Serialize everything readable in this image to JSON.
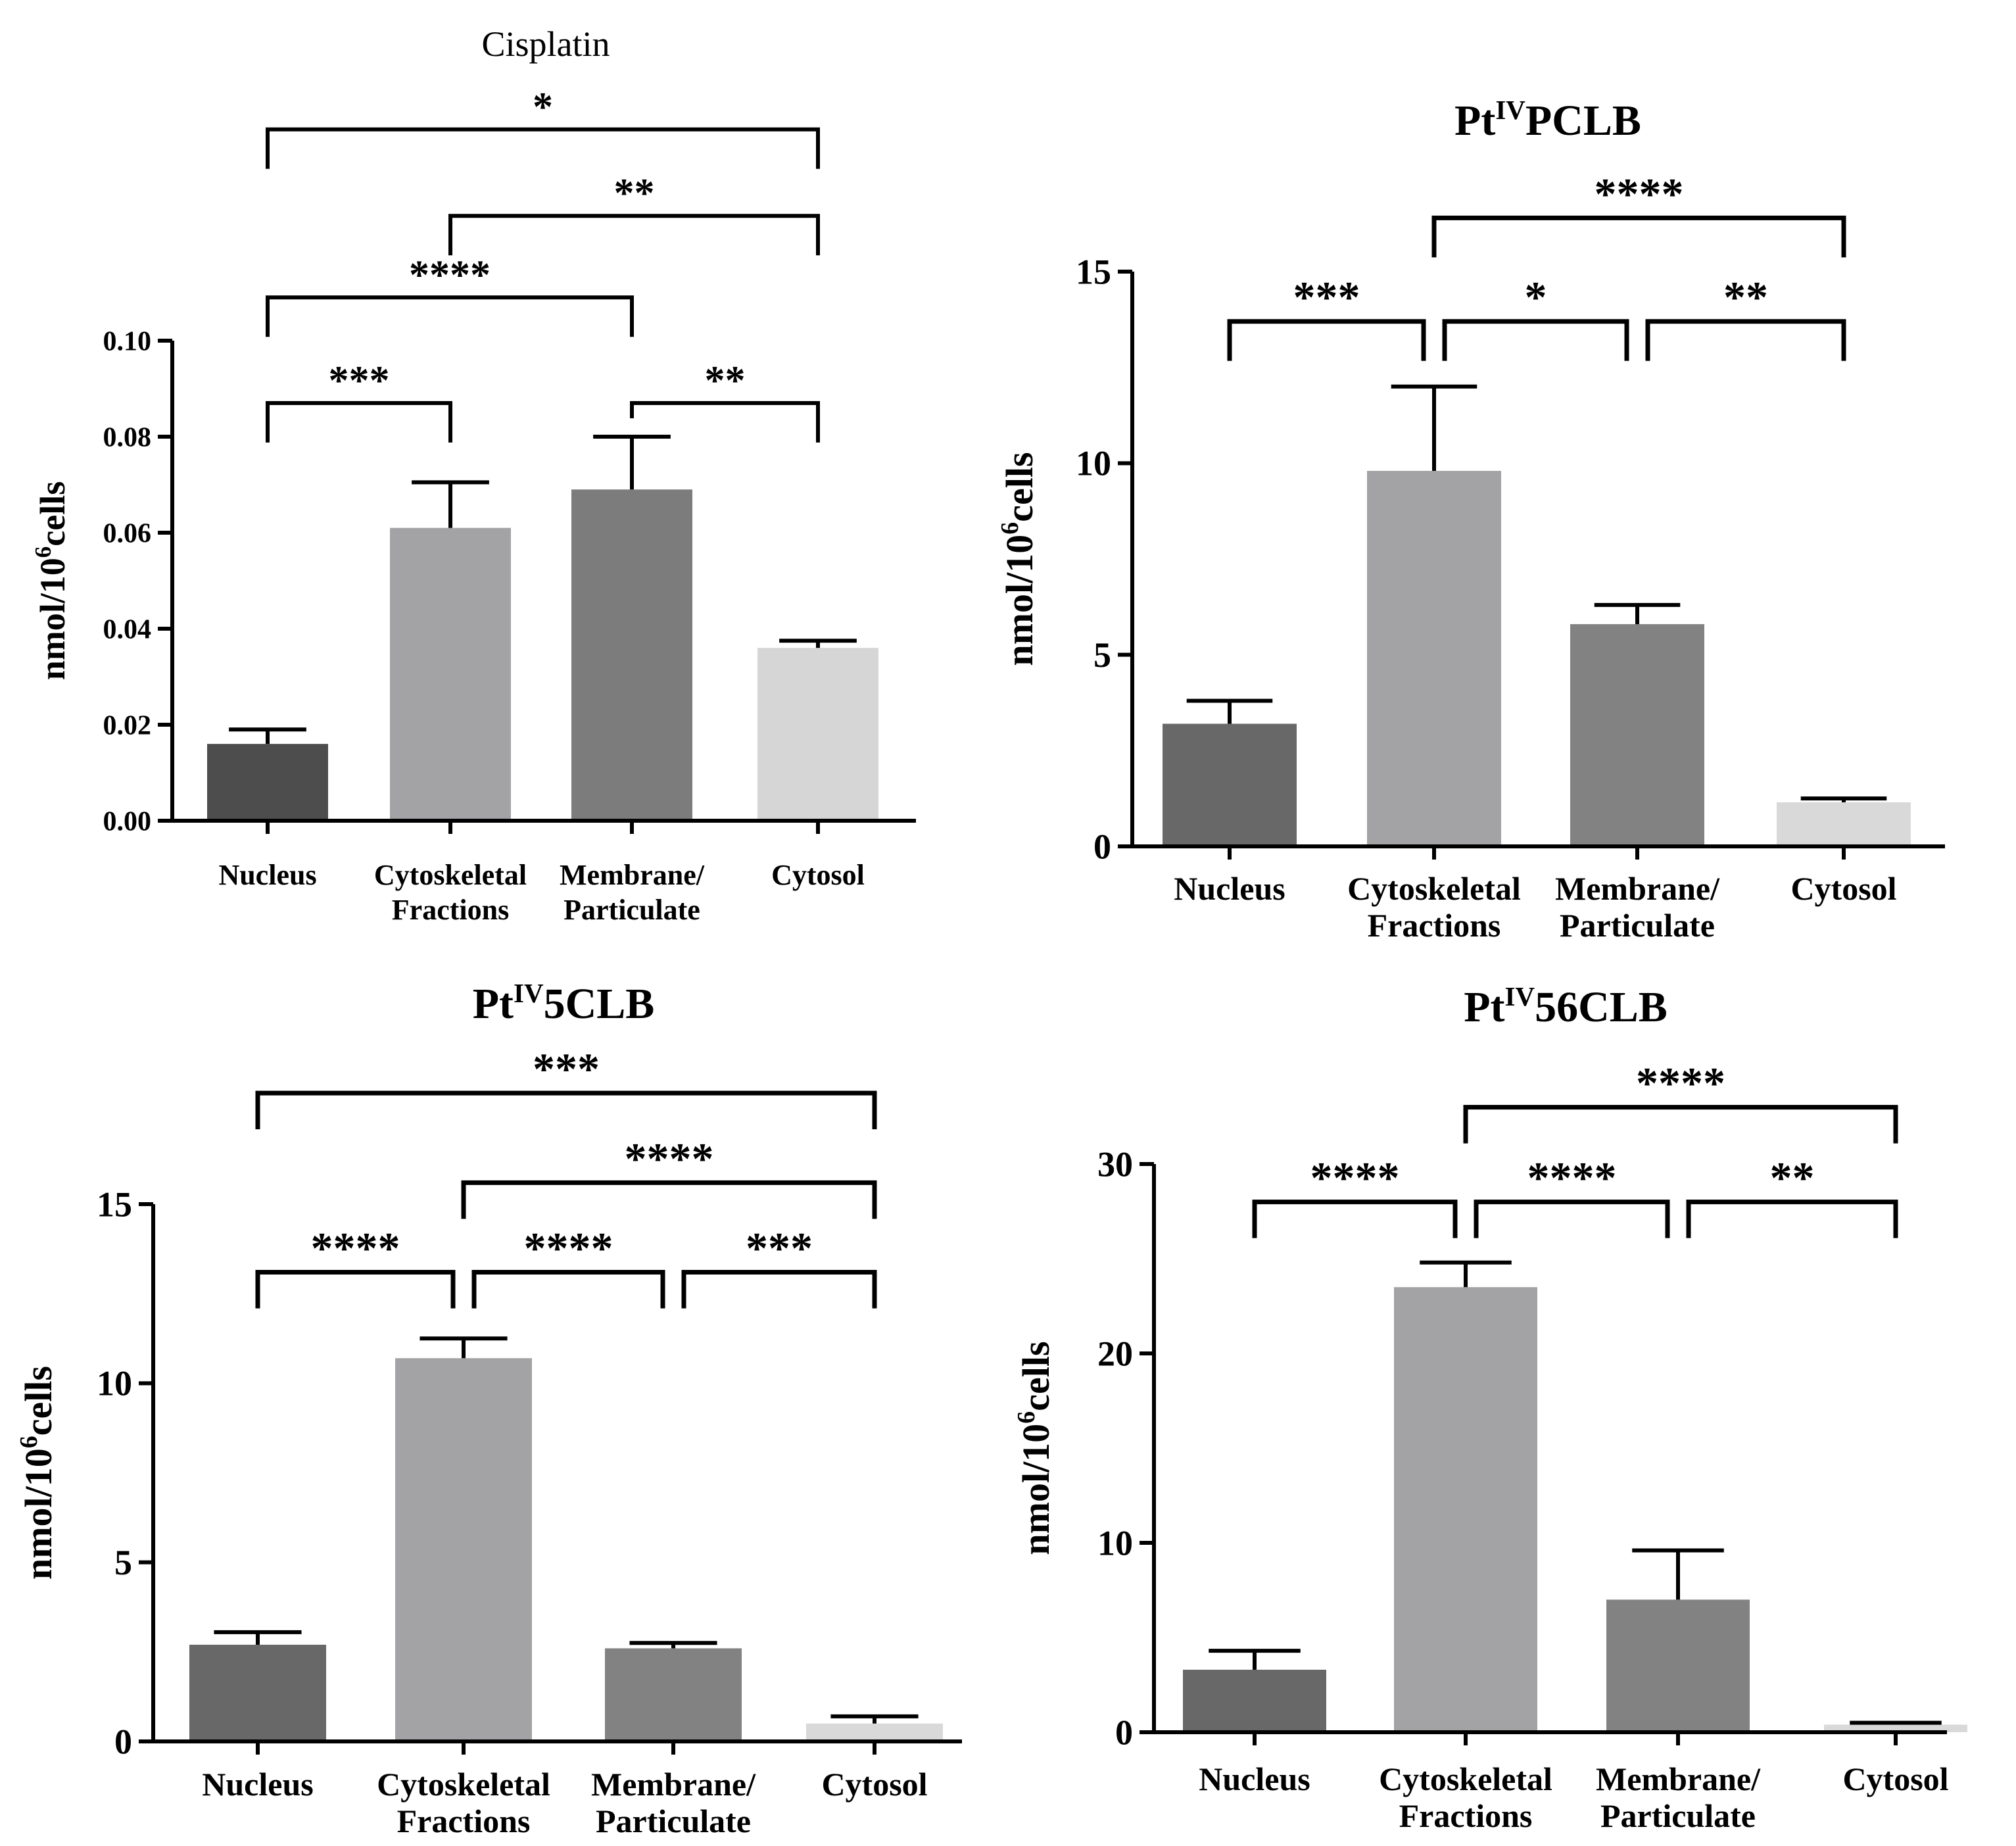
{
  "chart_data": [
    {
      "type": "bar",
      "title": "Cisplatin",
      "title_bold": false,
      "ylabel": "nmol/10",
      "ylabel_sup": "6",
      "ylabel_tail": "cells",
      "categories": [
        {
          "line1": "Nucleus",
          "line2": ""
        },
        {
          "line1": "Cytoskeletal",
          "line2": "Fractions"
        },
        {
          "line1": "Membrane/",
          "line2": "Particulate"
        },
        {
          "line1": "Cytosol",
          "line2": ""
        }
      ],
      "values": [
        0.016,
        0.061,
        0.069,
        0.036
      ],
      "errors": [
        0.003,
        0.0095,
        0.011,
        0.0015
      ],
      "colors": [
        "#4d4d4d",
        "#a3a3a6",
        "#7c7c7c",
        "#d6d6d6"
      ],
      "ylim": [
        0,
        0.1
      ],
      "yticks": [
        "0.00",
        "0.02",
        "0.04",
        "0.06",
        "0.08",
        "0.10"
      ],
      "significance": [
        {
          "from": 0,
          "to": 1,
          "level": 0.087,
          "label": "***"
        },
        {
          "from": 2,
          "to": 3,
          "level": 0.087,
          "label": "**"
        },
        {
          "from": 0,
          "to": 2,
          "level": 0.109,
          "label": "****"
        },
        {
          "from": 1,
          "to": 3,
          "level": 0.126,
          "label": "**"
        },
        {
          "from": 0,
          "to": 3,
          "level": 0.144,
          "label": "*"
        }
      ]
    },
    {
      "type": "bar",
      "title": "Pt",
      "title_sup": "IV",
      "title_tail": "PCLB",
      "title_bold": true,
      "ylabel": "nmol/10",
      "ylabel_sup": "6",
      "ylabel_tail": "cells",
      "categories": [
        {
          "line1": "Nucleus",
          "line2": ""
        },
        {
          "line1": "Cytoskeletal",
          "line2": "Fractions"
        },
        {
          "line1": "Membrane/",
          "line2": "Particulate"
        },
        {
          "line1": "Cytosol",
          "line2": ""
        }
      ],
      "values": [
        3.2,
        9.8,
        5.8,
        1.15
      ],
      "errors": [
        0.6,
        2.2,
        0.5,
        0.1
      ],
      "colors": [
        "#686868",
        "#a3a3a6",
        "#828282",
        "#d9d9d9"
      ],
      "ylim": [
        0,
        15
      ],
      "yticks": [
        "0",
        "5",
        "10",
        "15"
      ],
      "significance": [
        {
          "from": 0,
          "to": 1,
          "level": 13.7,
          "label": "***"
        },
        {
          "from": 1,
          "to": 2,
          "level": 13.7,
          "label": "*"
        },
        {
          "from": 2,
          "to": 3,
          "level": 13.7,
          "label": "**"
        },
        {
          "from": 1,
          "to": 3,
          "level": 16.4,
          "label": "****"
        }
      ]
    },
    {
      "type": "bar",
      "title": "Pt",
      "title_sup": "IV",
      "title_tail": "5CLB",
      "title_bold": true,
      "ylabel": "nmol/10",
      "ylabel_sup": "6",
      "ylabel_tail": "cells",
      "categories": [
        {
          "line1": "Nucleus",
          "line2": ""
        },
        {
          "line1": "Cytoskeletal",
          "line2": "Fractions"
        },
        {
          "line1": "Membrane/",
          "line2": "Particulate"
        },
        {
          "line1": "Cytosol",
          "line2": ""
        }
      ],
      "values": [
        2.7,
        10.7,
        2.6,
        0.5
      ],
      "errors": [
        0.35,
        0.55,
        0.15,
        0.2
      ],
      "colors": [
        "#686868",
        "#a3a3a6",
        "#828282",
        "#d9d9d9"
      ],
      "ylim": [
        0,
        15
      ],
      "yticks": [
        "0",
        "5",
        "10",
        "15"
      ],
      "significance": [
        {
          "from": 0,
          "to": 1,
          "level": 13.1,
          "label": "****"
        },
        {
          "from": 1,
          "to": 2,
          "level": 13.1,
          "label": "****"
        },
        {
          "from": 2,
          "to": 3,
          "level": 13.1,
          "label": "***"
        },
        {
          "from": 1,
          "to": 3,
          "level": 15.6,
          "label": "****"
        },
        {
          "from": 0,
          "to": 3,
          "level": 18.1,
          "label": "***"
        }
      ]
    },
    {
      "type": "bar",
      "title": "Pt",
      "title_sup": "IV",
      "title_tail": "56CLB",
      "title_bold": true,
      "ylabel": "nmol/10",
      "ylabel_sup": "6",
      "ylabel_tail": "cells",
      "categories": [
        {
          "line1": "Nucleus",
          "line2": ""
        },
        {
          "line1": "Cytoskeletal",
          "line2": "Fractions"
        },
        {
          "line1": "Membrane/",
          "line2": "Particulate"
        },
        {
          "line1": "Cytosol",
          "line2": ""
        }
      ],
      "values": [
        3.3,
        23.5,
        7.0,
        0.4
      ],
      "errors": [
        1.0,
        1.3,
        2.6,
        0.1
      ],
      "colors": [
        "#686868",
        "#a3a3a6",
        "#828282",
        "#d9d9d9"
      ],
      "ylim": [
        0,
        30
      ],
      "yticks": [
        "0",
        "10",
        "20",
        "30"
      ],
      "significance": [
        {
          "from": 0,
          "to": 1,
          "level": 28.0,
          "label": "****"
        },
        {
          "from": 1,
          "to": 2,
          "level": 28.0,
          "label": "****"
        },
        {
          "from": 2,
          "to": 3,
          "level": 28.0,
          "label": "**"
        },
        {
          "from": 1,
          "to": 3,
          "level": 33.0,
          "label": "****"
        }
      ]
    }
  ]
}
